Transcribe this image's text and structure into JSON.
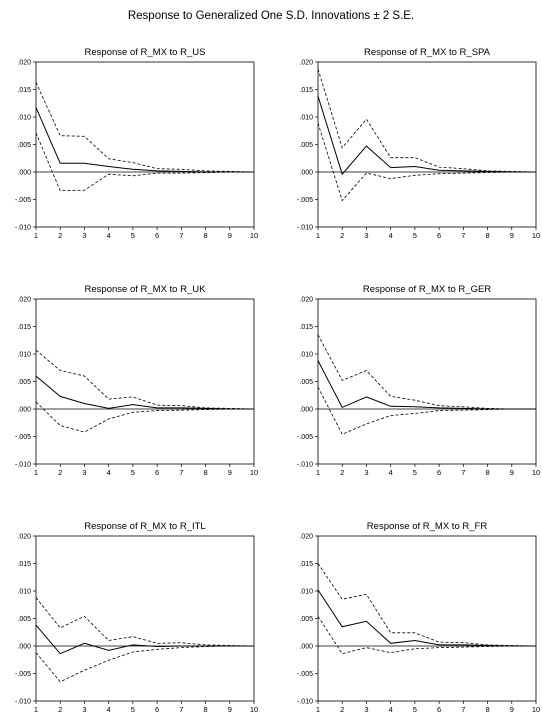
{
  "page": {
    "title": "Response to Generalized One S.D. Innovations ± 2 S.E."
  },
  "axis": {
    "y_ticks": [
      0.02,
      0.015,
      0.01,
      0.005,
      0.0,
      -0.005,
      -0.01
    ],
    "y_tick_labels": [
      ".020",
      ".015",
      ".010",
      ".005",
      ".000",
      "-.005",
      "-.010"
    ],
    "x_ticks": [
      1,
      2,
      3,
      4,
      5,
      6,
      7,
      8,
      9,
      10
    ],
    "x_tick_labels": [
      "1",
      "2",
      "3",
      "4",
      "5",
      "6",
      "7",
      "8",
      "9",
      "10"
    ]
  },
  "chart_data": [
    {
      "type": "line",
      "title": "Response of R_MX to R_US",
      "x": [
        1,
        2,
        3,
        4,
        5,
        6,
        7,
        8,
        9,
        10
      ],
      "ylim": [
        -0.01,
        0.02
      ],
      "series": [
        {
          "values": [
            0.0117,
            0.0016,
            0.0016,
            0.001,
            0.0005,
            0.0002,
            0.0001,
            0.0,
            0.0,
            0.0
          ]
        },
        {
          "values": [
            0.0163,
            0.0066,
            0.0065,
            0.0024,
            0.0017,
            0.0006,
            0.0005,
            0.0002,
            0.0001,
            0.0
          ]
        },
        {
          "values": [
            0.0071,
            -0.0034,
            -0.0033,
            -0.0004,
            -0.0007,
            -0.0002,
            -0.0002,
            -0.0001,
            0.0,
            0.0
          ]
        }
      ]
    },
    {
      "type": "line",
      "title": "Response of R_MX to R_SPA",
      "x": [
        1,
        2,
        3,
        4,
        5,
        6,
        7,
        8,
        9,
        10
      ],
      "ylim": [
        -0.01,
        0.02
      ],
      "series": [
        {
          "values": [
            0.0138,
            -0.0004,
            0.0047,
            0.0008,
            0.001,
            0.0003,
            0.0002,
            0.0001,
            0.0,
            0.0
          ]
        },
        {
          "values": [
            0.0187,
            0.0044,
            0.0096,
            0.0026,
            0.0026,
            0.0009,
            0.0006,
            0.0002,
            0.0001,
            0.0
          ]
        },
        {
          "values": [
            0.0089,
            -0.0052,
            -0.0002,
            -0.0012,
            -0.0006,
            -0.0003,
            -0.0002,
            -0.0001,
            0.0,
            0.0
          ]
        }
      ]
    },
    {
      "type": "line",
      "title": "Response of R_MX to R_UK",
      "x": [
        1,
        2,
        3,
        4,
        5,
        6,
        7,
        8,
        9,
        10
      ],
      "ylim": [
        -0.01,
        0.02
      ],
      "series": [
        {
          "values": [
            0.006,
            0.0023,
            0.001,
            0.0001,
            0.0008,
            0.0002,
            0.0002,
            0.0001,
            0.0,
            0.0
          ]
        },
        {
          "values": [
            0.0107,
            0.007,
            0.006,
            0.0018,
            0.0022,
            0.0007,
            0.0006,
            0.0002,
            0.0001,
            0.0
          ]
        },
        {
          "values": [
            0.0013,
            -0.003,
            -0.0042,
            -0.0018,
            -0.0006,
            -0.0003,
            -0.0002,
            -0.0001,
            0.0,
            0.0
          ]
        }
      ]
    },
    {
      "type": "line",
      "title": "Response of R_MX to R_GER",
      "x": [
        1,
        2,
        3,
        4,
        5,
        6,
        7,
        8,
        9,
        10
      ],
      "ylim": [
        -0.01,
        0.02
      ],
      "series": [
        {
          "values": [
            0.0088,
            0.0003,
            0.0022,
            0.0005,
            0.0004,
            0.0002,
            0.0001,
            0.0,
            0.0,
            0.0
          ]
        },
        {
          "values": [
            0.0135,
            0.0052,
            0.007,
            0.0023,
            0.0016,
            0.0006,
            0.0004,
            0.0001,
            0.0,
            0.0
          ]
        },
        {
          "values": [
            0.004,
            -0.0046,
            -0.0027,
            -0.0012,
            -0.0008,
            -0.0003,
            -0.0002,
            -0.0001,
            0.0,
            0.0
          ]
        }
      ]
    },
    {
      "type": "line",
      "title": "Response of R_MX to R_ITL",
      "x": [
        1,
        2,
        3,
        4,
        5,
        6,
        7,
        8,
        9,
        10
      ],
      "ylim": [
        -0.01,
        0.02
      ],
      "series": [
        {
          "values": [
            0.0038,
            -0.0014,
            0.0005,
            -0.0008,
            0.0002,
            -0.0001,
            0.0,
            0.0,
            0.0,
            0.0
          ]
        },
        {
          "values": [
            0.0088,
            0.0033,
            0.0054,
            0.001,
            0.0017,
            0.0005,
            0.0006,
            0.0002,
            0.0001,
            0.0
          ]
        },
        {
          "values": [
            -0.0012,
            -0.0065,
            -0.0044,
            -0.0026,
            -0.0011,
            -0.0006,
            -0.0003,
            -0.0001,
            0.0,
            0.0
          ]
        }
      ]
    },
    {
      "type": "line",
      "title": "Response of R_MX to R_FR",
      "x": [
        1,
        2,
        3,
        4,
        5,
        6,
        7,
        8,
        9,
        10
      ],
      "ylim": [
        -0.01,
        0.02
      ],
      "series": [
        {
          "values": [
            0.0102,
            0.0035,
            0.0045,
            0.0005,
            0.001,
            0.0002,
            0.0002,
            0.0001,
            0.0,
            0.0
          ]
        },
        {
          "values": [
            0.015,
            0.0085,
            0.0094,
            0.0024,
            0.0024,
            0.0007,
            0.0006,
            0.0002,
            0.0001,
            0.0
          ]
        },
        {
          "values": [
            0.0054,
            -0.0014,
            -0.0003,
            -0.0012,
            -0.0005,
            -0.0003,
            -0.0002,
            -0.0001,
            0.0,
            0.0
          ]
        }
      ]
    }
  ]
}
